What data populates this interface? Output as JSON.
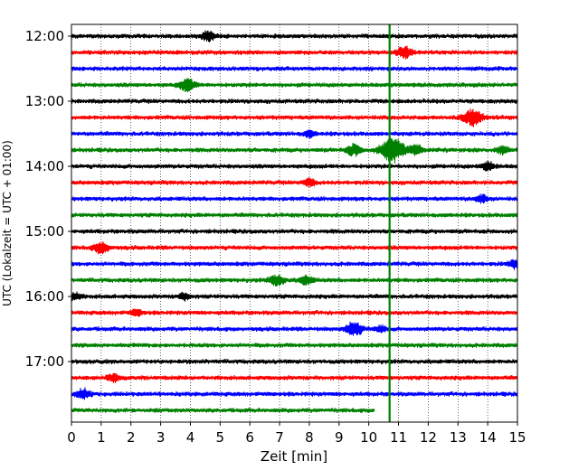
{
  "chart_data": {
    "type": "line",
    "title": "",
    "xlabel": "Zeit  [min]",
    "ylabel": "UTC (Lokalzeit = UTC + 01:00)",
    "xlim": [
      0,
      15
    ],
    "x_ticks": [
      "0",
      "1",
      "2",
      "3",
      "4",
      "5",
      "6",
      "7",
      "8",
      "9",
      "10",
      "11",
      "12",
      "13",
      "14",
      "15"
    ],
    "y_ticks": [
      "12:00",
      "13:00",
      "14:00",
      "15:00",
      "16:00",
      "17:00"
    ],
    "grid": true,
    "trace_interval_minutes": 15,
    "trace_colors": [
      "#000000",
      "#ff0000",
      "#0000ff",
      "#008000"
    ],
    "marker_line": {
      "x": 10.7,
      "color": "#008000"
    },
    "series": [
      {
        "start": "12:00",
        "x_end": 15,
        "color": "#000000",
        "events": [
          {
            "x": 4.6,
            "amp": 0.35
          }
        ]
      },
      {
        "start": "12:15",
        "x_end": 15,
        "color": "#ff0000",
        "events": [
          {
            "x": 11.2,
            "amp": 0.45
          }
        ]
      },
      {
        "start": "12:30",
        "x_end": 15,
        "color": "#0000ff",
        "events": []
      },
      {
        "start": "12:45",
        "x_end": 15,
        "color": "#008000",
        "events": [
          {
            "x": 3.9,
            "amp": 0.5
          }
        ]
      },
      {
        "start": "13:00",
        "x_end": 15,
        "color": "#000000",
        "events": []
      },
      {
        "start": "13:15",
        "x_end": 15,
        "color": "#ff0000",
        "events": [
          {
            "x": 13.5,
            "amp": 0.7
          }
        ]
      },
      {
        "start": "13:30",
        "x_end": 15,
        "color": "#0000ff",
        "events": [
          {
            "x": 8.0,
            "amp": 0.25
          }
        ]
      },
      {
        "start": "13:45",
        "x_end": 15,
        "color": "#008000",
        "events": [
          {
            "x": 10.8,
            "amp": 1.0
          },
          {
            "x": 9.5,
            "amp": 0.45
          },
          {
            "x": 11.6,
            "amp": 0.4
          },
          {
            "x": 14.5,
            "amp": 0.3
          }
        ]
      },
      {
        "start": "14:00",
        "x_end": 15,
        "color": "#000000",
        "events": [
          {
            "x": 14.0,
            "amp": 0.35
          }
        ]
      },
      {
        "start": "14:15",
        "x_end": 15,
        "color": "#ff0000",
        "events": [
          {
            "x": 8.0,
            "amp": 0.3
          }
        ]
      },
      {
        "start": "14:30",
        "x_end": 15,
        "color": "#0000ff",
        "events": [
          {
            "x": 13.8,
            "amp": 0.3
          }
        ]
      },
      {
        "start": "14:45",
        "x_end": 15,
        "color": "#008000",
        "events": []
      },
      {
        "start": "15:00",
        "x_end": 15,
        "color": "#000000",
        "events": []
      },
      {
        "start": "15:15",
        "x_end": 15,
        "color": "#ff0000",
        "events": [
          {
            "x": 1.0,
            "amp": 0.45
          }
        ]
      },
      {
        "start": "15:30",
        "x_end": 15,
        "color": "#0000ff",
        "events": [
          {
            "x": 14.9,
            "amp": 0.3
          }
        ]
      },
      {
        "start": "15:45",
        "x_end": 15,
        "color": "#008000",
        "events": [
          {
            "x": 6.9,
            "amp": 0.45
          },
          {
            "x": 7.9,
            "amp": 0.35
          }
        ]
      },
      {
        "start": "16:00",
        "x_end": 15,
        "color": "#000000",
        "events": [
          {
            "x": 0.1,
            "amp": 0.3
          },
          {
            "x": 3.8,
            "amp": 0.25
          }
        ]
      },
      {
        "start": "16:15",
        "x_end": 15,
        "color": "#ff0000",
        "events": [
          {
            "x": 2.2,
            "amp": 0.25
          }
        ]
      },
      {
        "start": "16:30",
        "x_end": 15,
        "color": "#0000ff",
        "events": [
          {
            "x": 9.5,
            "amp": 0.55
          },
          {
            "x": 10.4,
            "amp": 0.25
          }
        ]
      },
      {
        "start": "16:45",
        "x_end": 15,
        "color": "#008000",
        "events": []
      },
      {
        "start": "17:00",
        "x_end": 15,
        "color": "#000000",
        "events": []
      },
      {
        "start": "17:15",
        "x_end": 15,
        "color": "#ff0000",
        "events": [
          {
            "x": 1.4,
            "amp": 0.3
          }
        ]
      },
      {
        "start": "17:30",
        "x_end": 15,
        "color": "#0000ff",
        "events": [
          {
            "x": 0.4,
            "amp": 0.4
          }
        ]
      },
      {
        "start": "17:45",
        "x_end": 10.2,
        "color": "#008000",
        "events": []
      }
    ]
  }
}
